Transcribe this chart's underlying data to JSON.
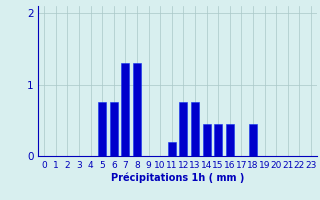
{
  "hours": [
    0,
    1,
    2,
    3,
    4,
    5,
    6,
    7,
    8,
    9,
    10,
    11,
    12,
    13,
    14,
    15,
    16,
    17,
    18,
    19,
    20,
    21,
    22,
    23
  ],
  "values": [
    0,
    0,
    0,
    0,
    0,
    0.75,
    0.75,
    1.3,
    1.3,
    0,
    0,
    0.2,
    0.75,
    0.75,
    0.45,
    0.45,
    0.45,
    0,
    0.45,
    0,
    0,
    0,
    0,
    0
  ],
  "bar_color": "#0000cc",
  "bar_edge_color": "#1133ee",
  "background_color": "#d8efef",
  "grid_color": "#aac8c8",
  "axis_color": "#0000bb",
  "xlabel": "Précipitations 1h ( mm )",
  "ylim": [
    0,
    2.1
  ],
  "yticks": [
    0,
    1,
    2
  ],
  "xlabel_fontsize": 7,
  "tick_fontsize": 6.5
}
